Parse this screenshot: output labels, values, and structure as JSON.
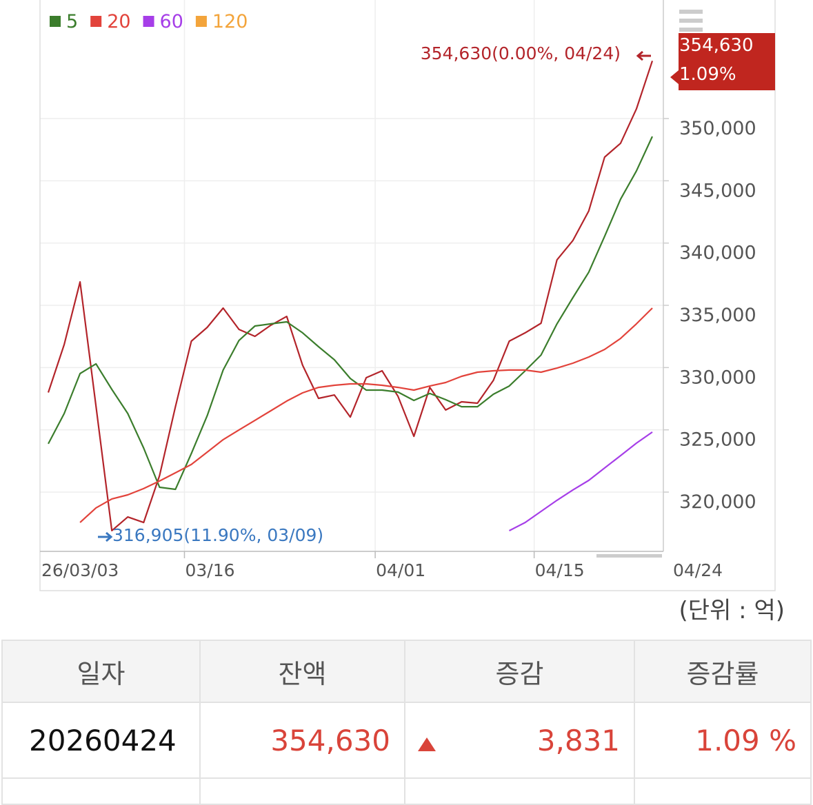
{
  "chart_data": {
    "type": "line",
    "categories": [
      "26/03/03",
      null,
      null,
      null,
      null,
      null,
      null,
      null,
      null,
      "03/16",
      null,
      null,
      null,
      null,
      null,
      null,
      null,
      null,
      null,
      null,
      null,
      "04/01",
      null,
      null,
      null,
      null,
      null,
      null,
      null,
      null,
      null,
      "04/15",
      null,
      null,
      null,
      null,
      null,
      null,
      "04/24"
    ],
    "series": [
      {
        "color": "#b3242a",
        "values": [
          328000,
          331850,
          336880,
          326900,
          316905,
          318000,
          317560,
          321330,
          326860,
          332120,
          333230,
          334780,
          333060,
          332510,
          333400,
          334110,
          330190,
          327530,
          327800,
          326030,
          329190,
          329740,
          327690,
          324480,
          328410,
          326590,
          327250,
          327140,
          328970,
          332120,
          332790,
          333560,
          338650,
          340200,
          342580,
          346900,
          348010,
          350770,
          354630
        ]
      },
      {
        "name": "5",
        "color": "#3b7d2c",
        "values": [
          323880,
          326310,
          329520,
          330300,
          328250,
          326310,
          323540,
          320390,
          320220,
          323100,
          326140,
          329800,
          332180,
          333340,
          333510,
          333670,
          332790,
          331680,
          330630,
          329130,
          328190,
          328190,
          328030,
          327360,
          327920,
          327420,
          326860,
          326860,
          327860,
          328520,
          329740,
          331010,
          333510,
          335610,
          337660,
          340540,
          343520,
          345790,
          348560
        ]
      },
      {
        "name": "20",
        "color": "#e2433b",
        "values": [
          null,
          null,
          317560,
          318730,
          319450,
          319780,
          320280,
          320890,
          321550,
          322220,
          323210,
          324210,
          324990,
          325760,
          326530,
          327310,
          327970,
          328410,
          328580,
          328690,
          328690,
          328580,
          328410,
          328190,
          328520,
          328800,
          329300,
          329630,
          329740,
          329800,
          329800,
          329630,
          329960,
          330350,
          330850,
          331460,
          332340,
          333510,
          334780
        ]
      },
      {
        "name": "60",
        "color": "#a63ee8",
        "values": [
          null,
          null,
          null,
          null,
          null,
          null,
          null,
          null,
          null,
          null,
          null,
          null,
          null,
          null,
          null,
          null,
          null,
          null,
          null,
          null,
          null,
          null,
          null,
          null,
          null,
          null,
          null,
          null,
          null,
          316900,
          317560,
          318450,
          319340,
          320170,
          320940,
          321940,
          322930,
          323930,
          324820
        ]
      },
      {
        "name": "120",
        "color": "#f3a43b",
        "values": [
          null,
          null,
          null,
          null,
          null,
          null,
          null,
          null,
          null,
          null,
          null,
          null,
          null,
          null,
          null,
          null,
          null,
          null,
          null,
          null,
          null,
          null,
          null,
          null,
          null,
          null,
          null,
          null,
          null,
          null,
          null,
          null,
          null,
          null,
          null,
          null,
          null,
          null,
          null
        ]
      }
    ],
    "ylim": [
      315240,
      359520
    ],
    "yticks": [
      {
        "value": 320000,
        "label": "320,000"
      },
      {
        "value": 325000,
        "label": "325,000"
      },
      {
        "value": 330000,
        "label": "330,000"
      },
      {
        "value": 335000,
        "label": "335,000"
      },
      {
        "value": 340000,
        "label": "340,000"
      },
      {
        "value": 345000,
        "label": "345,000"
      },
      {
        "value": 350000,
        "label": "350,000"
      }
    ],
    "grid": true,
    "max_label": "354,630(0.00%, 04/24)",
    "min_label": "316,905(11.90%, 03/09)",
    "price_tag": {
      "value": "354,630",
      "change": "1.09%"
    }
  },
  "unit_note": "(단위 : 억)",
  "table": {
    "headers": [
      "일자",
      "잔액",
      "증감",
      "증감률"
    ],
    "rows": [
      [
        "20260424",
        "354,630",
        "3,831",
        "1.09 %"
      ]
    ]
  }
}
